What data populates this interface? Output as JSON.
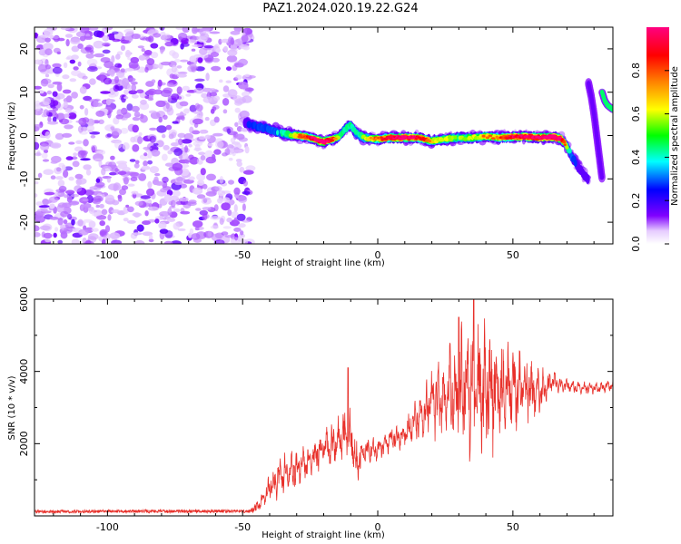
{
  "title": "PAZ1.2024.020.19.22.G24",
  "colors": {
    "snr_line": "#e8302a",
    "noise_blob": "#8a2be2",
    "background": "#ffffff"
  },
  "chart_data": [
    {
      "type": "heatmap",
      "name": "spectrogram",
      "xlabel": "Height of straight line (km)",
      "ylabel": "Frequency (Hz)",
      "xlim": [
        -127,
        87
      ],
      "ylim": [
        -25,
        25
      ],
      "xticks": [
        -100,
        -50,
        0,
        50
      ],
      "xtick_labels": [
        "-100",
        "-50",
        "0",
        "50"
      ],
      "yticks": [
        -20,
        -10,
        0,
        10,
        20
      ],
      "ytick_labels": [
        "-20",
        "-10",
        "0",
        "10",
        "20"
      ],
      "grid": false,
      "noise_region": {
        "x_range": [
          -127,
          -47
        ],
        "y_range": [
          -25,
          25
        ],
        "level": 0.12
      },
      "signal_trace": {
        "x": [
          -49,
          -45,
          -40,
          -35,
          -30,
          -25,
          -20,
          -15,
          -12,
          -10,
          -8,
          -5,
          0,
          5,
          10,
          15,
          20,
          25,
          30,
          35,
          40,
          45,
          50,
          55,
          60,
          65,
          68,
          70,
          72,
          74,
          76,
          78
        ],
        "y": [
          3,
          2,
          1.5,
          0.5,
          0,
          -0.5,
          -1.5,
          -0.5,
          1.5,
          2.5,
          0.5,
          -0.5,
          -0.8,
          -0.5,
          -0.5,
          -0.5,
          -1.2,
          -0.8,
          -0.5,
          -0.5,
          -0.2,
          -0.5,
          -0.3,
          -0.3,
          -0.5,
          -0.3,
          -0.8,
          -2.5,
          -5,
          -7,
          -9,
          -10
        ],
        "amplitude": [
          0.25,
          0.3,
          0.35,
          0.4,
          0.55,
          0.7,
          0.95,
          0.5,
          0.4,
          0.45,
          0.4,
          0.5,
          0.6,
          0.75,
          0.9,
          0.7,
          0.55,
          0.5,
          0.45,
          0.5,
          0.55,
          0.6,
          0.75,
          0.8,
          0.85,
          0.95,
          0.8,
          0.5,
          0.35,
          0.25,
          0.2,
          0.15
        ]
      },
      "side_traces": [
        {
          "x": [
            78,
            79,
            80,
            81,
            82,
            83
          ],
          "y": [
            12,
            9,
            5,
            0,
            -5,
            -10
          ],
          "amplitude": 0.15
        },
        {
          "x": [
            83,
            84,
            85,
            86,
            87
          ],
          "y": [
            10,
            8,
            7,
            6.5,
            6
          ],
          "amplitude": 0.45
        }
      ],
      "colorbar": {
        "label": "Normalized spectral amplitude",
        "range": [
          0,
          1
        ],
        "ticks": [
          0.0,
          0.2,
          0.4,
          0.6,
          0.8
        ],
        "tick_labels": [
          "0.0",
          "0.2",
          "0.4",
          "0.6",
          "0.8"
        ],
        "stops": [
          {
            "v": 0.0,
            "c": "#ffffff"
          },
          {
            "v": 0.06,
            "c": "#e6ccff"
          },
          {
            "v": 0.13,
            "c": "#8000ff"
          },
          {
            "v": 0.25,
            "c": "#0000ff"
          },
          {
            "v": 0.38,
            "c": "#00ffff"
          },
          {
            "v": 0.5,
            "c": "#00ff00"
          },
          {
            "v": 0.62,
            "c": "#ffff00"
          },
          {
            "v": 0.75,
            "c": "#ff8000"
          },
          {
            "v": 0.87,
            "c": "#ff0000"
          },
          {
            "v": 1.0,
            "c": "#ff0080"
          }
        ]
      }
    },
    {
      "type": "line",
      "name": "snr",
      "xlabel": "Height of straight line (km)",
      "ylabel": "SNR (10 * v/v)",
      "xlim": [
        -127,
        87
      ],
      "ylim": [
        0,
        6000
      ],
      "xticks": [
        -100,
        -50,
        0,
        50
      ],
      "xtick_labels": [
        "-100",
        "-50",
        "0",
        "50"
      ],
      "yticks": [
        2000,
        4000,
        6000
      ],
      "ytick_labels": [
        "2000",
        "4000",
        "6000"
      ],
      "grid": false,
      "baseline": 120,
      "rise_start": -45,
      "anchors": {
        "x": [
          -127,
          -47,
          -43,
          -40,
          -35,
          -30,
          -25,
          -20,
          -15,
          -12,
          -10,
          -8,
          -5,
          0,
          5,
          10,
          15,
          20,
          25,
          30,
          35,
          40,
          45,
          50,
          55,
          60,
          65,
          70,
          75,
          80,
          87
        ],
        "y": [
          120,
          130,
          350,
          800,
          1200,
          1300,
          1500,
          1900,
          2000,
          2300,
          2200,
          1500,
          1800,
          1850,
          2100,
          2300,
          2700,
          3100,
          3300,
          3500,
          3600,
          3500,
          3400,
          3450,
          3500,
          3450,
          3700,
          3600,
          3550,
          3550,
          3600
        ]
      },
      "amplitude": {
        "x": [
          -127,
          -47,
          -43,
          -35,
          -25,
          -15,
          -10,
          -5,
          0,
          10,
          20,
          25,
          30,
          35,
          40,
          45,
          50,
          55,
          60,
          65,
          70,
          87
        ],
        "y": [
          40,
          45,
          200,
          500,
          400,
          500,
          600,
          350,
          250,
          300,
          700,
          1100,
          1400,
          1700,
          1600,
          1200,
          1000,
          800,
          500,
          250,
          150,
          130
        ]
      },
      "spikes": [
        {
          "x": -11,
          "y": 4100
        },
        {
          "x": 35.5,
          "y": 6000
        },
        {
          "x": 30,
          "y": 5500
        }
      ]
    }
  ]
}
